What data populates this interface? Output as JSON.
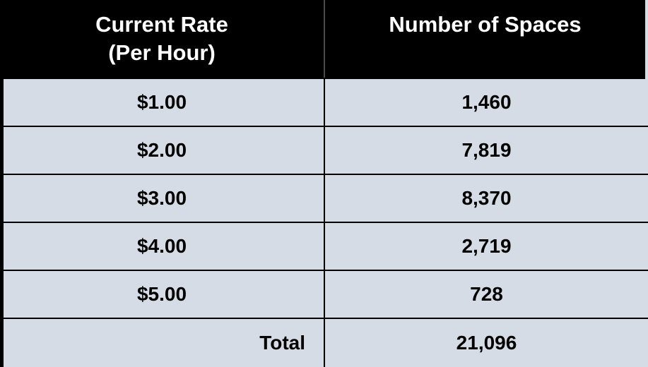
{
  "chart_data": {
    "type": "table",
    "title": "",
    "columns": [
      "Current Rate (Per Hour)",
      "Number of Spaces"
    ],
    "rows": [
      [
        "$1.00",
        "1,460"
      ],
      [
        "$2.00",
        "7,819"
      ],
      [
        "$3.00",
        "8,370"
      ],
      [
        "$4.00",
        "2,719"
      ],
      [
        "$5.00",
        "728"
      ],
      [
        "Total",
        "21,096"
      ]
    ],
    "rates_numeric": [
      1.0,
      2.0,
      3.0,
      4.0,
      5.0
    ],
    "spaces_numeric": [
      1460,
      7819,
      8370,
      2719,
      728
    ],
    "total_spaces": 21096
  },
  "ui": {
    "header": {
      "col1_line1": "Current Rate",
      "col1_line2": "(Per Hour)",
      "col2": "Number of Spaces"
    },
    "rows": [
      {
        "rate": "$1.00",
        "spaces": "1,460"
      },
      {
        "rate": "$2.00",
        "spaces": "7,819"
      },
      {
        "rate": "$3.00",
        "spaces": "8,370"
      },
      {
        "rate": "$4.00",
        "spaces": "2,719"
      },
      {
        "rate": "$5.00",
        "spaces": "728"
      }
    ],
    "total": {
      "label": "Total",
      "value": "21,096"
    },
    "colors": {
      "header_bg": "#000000",
      "header_text": "#FFFFFF",
      "row_bg": "#D6DCE5",
      "border": "#000000",
      "body_text": "#000000"
    }
  }
}
